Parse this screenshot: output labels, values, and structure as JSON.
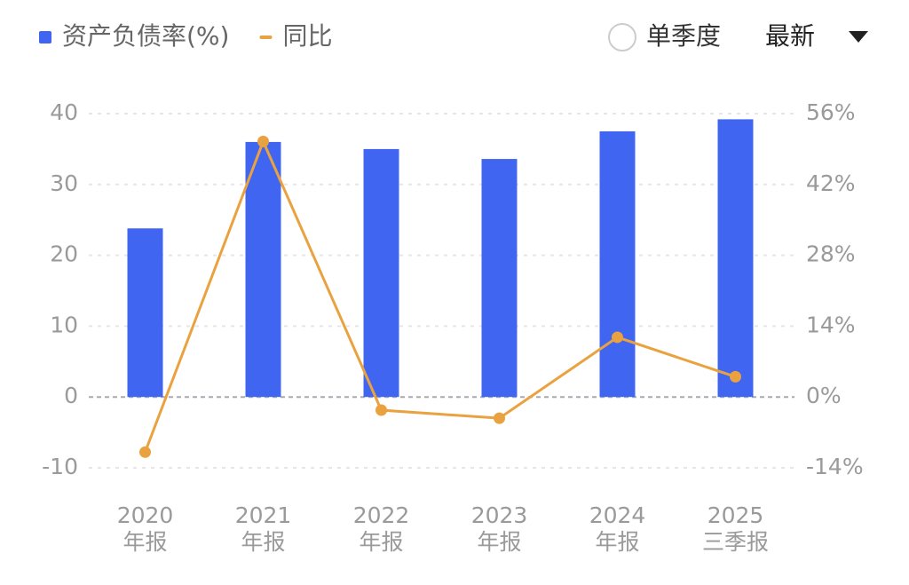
{
  "chart_data": {
    "type": "bar-line",
    "categories": [
      [
        "2020",
        "年报"
      ],
      [
        "2021",
        "年报"
      ],
      [
        "2022",
        "年报"
      ],
      [
        "2023",
        "年报"
      ],
      [
        "2024",
        "年报"
      ],
      [
        "2025",
        "三季报"
      ]
    ],
    "series": [
      {
        "name": "资产负债率(%)",
        "type": "bar",
        "color": "#4065f0",
        "values": [
          23.8,
          36.0,
          35.0,
          33.6,
          37.5,
          39.2
        ]
      },
      {
        "name": "同比",
        "type": "line",
        "axis": "y2",
        "color": "#e9a23f",
        "values": [
          -10.9,
          50.5,
          -2.6,
          -4.2,
          11.8,
          4.0
        ]
      }
    ],
    "ylim": [
      -10,
      40
    ],
    "yticks": [
      -10,
      0,
      10,
      20,
      30,
      40
    ],
    "y2lim": [
      -14,
      56
    ],
    "y2ticks": [
      {
        "value": -14,
        "label": "-14%"
      },
      {
        "value": 0,
        "label": "0%"
      },
      {
        "value": 14,
        "label": "14%"
      },
      {
        "value": 28,
        "label": "28%"
      },
      {
        "value": 42,
        "label": "42%"
      },
      {
        "value": 56,
        "label": "56%"
      }
    ],
    "grid": true
  },
  "controls": {
    "toggle": "单季度",
    "dropdown": "最新"
  }
}
